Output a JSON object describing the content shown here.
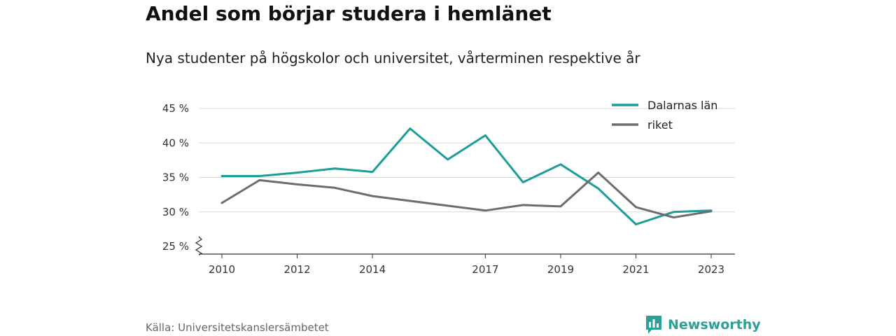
{
  "title": "Andel som börjar studera i hemlänet",
  "subtitle": "Nya studenter på högskolor och universitet, vårterminen respektive år",
  "source": "Källa: Universitetskanslersämbetet",
  "brand": "Newsworthy",
  "colors": {
    "dalarna": "#1a9e96",
    "riket": "#6e6b72",
    "grid": "#d9d9d9",
    "axis": "#333333",
    "brand": "#2aa198"
  },
  "chart_data": {
    "type": "line",
    "x": [
      2010,
      2011,
      2012,
      2013,
      2014,
      2015,
      2016,
      2017,
      2018,
      2019,
      2020,
      2021,
      2022,
      2023
    ],
    "x_tick_labels": [
      "2010",
      "2012",
      "2014",
      "2017",
      "2019",
      "2021",
      "2023"
    ],
    "y_tick_labels": [
      "25 %",
      "30 %",
      "35 %",
      "40 %",
      "45 %"
    ],
    "ylim": [
      25,
      45
    ],
    "y_axis_break": true,
    "grid": true,
    "legend_position": "top-right",
    "series": [
      {
        "name": "Dalarnas län",
        "color": "#1a9e96",
        "values": [
          35.2,
          35.2,
          35.7,
          36.3,
          35.8,
          42.1,
          37.6,
          41.1,
          34.3,
          36.9,
          33.4,
          28.2,
          30.0,
          30.2
        ]
      },
      {
        "name": "riket",
        "color": "#6e6b72",
        "values": [
          31.3,
          34.6,
          34.0,
          33.5,
          32.3,
          31.6,
          30.9,
          30.2,
          31.0,
          30.8,
          35.7,
          30.7,
          29.2,
          30.1
        ]
      }
    ]
  }
}
